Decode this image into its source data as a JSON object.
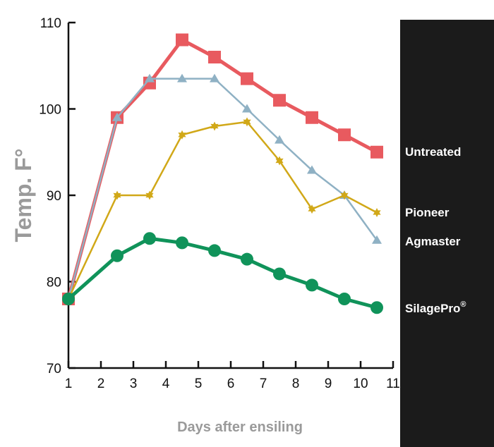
{
  "chart_data": {
    "type": "line",
    "title": "",
    "xlabel": "Days after ensiling",
    "ylabel": "Temp. F°",
    "xlim": [
      1,
      11
    ],
    "ylim": [
      70,
      110
    ],
    "xticks": [
      "1",
      "2",
      "3",
      "4",
      "5",
      "6",
      "7",
      "8",
      "9",
      "10",
      "11"
    ],
    "yticks": [
      "70",
      "80",
      "90",
      "100",
      "110"
    ],
    "grid": false,
    "legend_placement": "right",
    "x": [
      1,
      2.5,
      3.5,
      4.5,
      5.5,
      6.5,
      7.5,
      8.5,
      9.5,
      10.5
    ],
    "series": [
      {
        "name": "Untreated",
        "color": "#e85a5f",
        "marker": "square",
        "values": [
          78,
          99,
          103,
          108,
          106,
          103.5,
          101,
          99,
          97,
          95
        ]
      },
      {
        "name": "Pioneer",
        "color": "#8fb1c4",
        "marker": "triangle",
        "values": [
          78,
          99,
          103.5,
          103.5,
          103.5,
          100,
          96.4,
          92.9,
          90,
          84.8
        ]
      },
      {
        "name": "Agmaster",
        "color": "#d1a818",
        "marker": "star",
        "values": [
          78,
          90,
          90,
          97,
          98,
          98.5,
          94,
          88.4,
          90,
          88
        ]
      },
      {
        "name": "SilagePro",
        "superscript": "®",
        "color": "#10935a",
        "marker": "circle",
        "values": [
          78,
          83,
          85,
          84.5,
          83.6,
          82.6,
          80.9,
          79.6,
          78,
          77
        ]
      }
    ]
  }
}
